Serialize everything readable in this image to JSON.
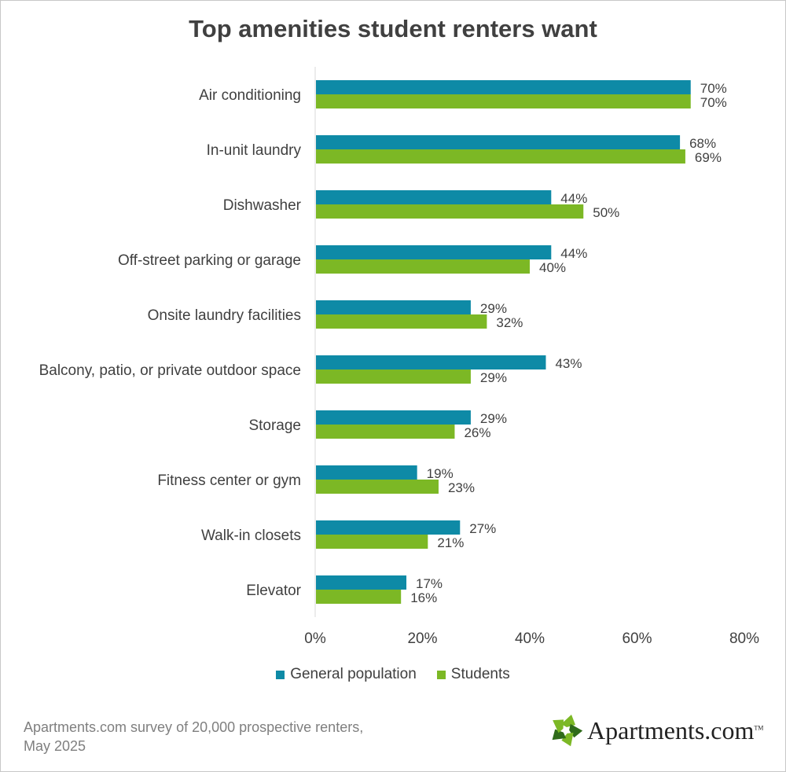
{
  "chart_data": {
    "type": "bar",
    "orientation": "horizontal",
    "title": "Top amenities student renters want",
    "categories": [
      "Air conditioning",
      "In-unit laundry",
      "Dishwasher",
      "Off-street parking or garage",
      "Onsite laundry facilities",
      "Balcony, patio, or private outdoor space",
      "Storage",
      "Fitness center or gym",
      "Walk-in closets",
      "Elevator"
    ],
    "series": [
      {
        "name": "General population",
        "color": "#0e8aa6",
        "values": [
          70,
          68,
          44,
          44,
          29,
          43,
          29,
          19,
          27,
          17
        ],
        "labels": [
          "70%",
          "68%",
          "44%",
          "44%",
          "29%",
          "43%",
          "29%",
          "19%",
          "27%",
          "17%"
        ]
      },
      {
        "name": "Students",
        "color": "#7cb825",
        "values": [
          70,
          69,
          50,
          40,
          32,
          29,
          26,
          23,
          21,
          16
        ],
        "labels": [
          "70%",
          "69%",
          "50%",
          "40%",
          "32%",
          "29%",
          "26%",
          "23%",
          "21%",
          "16%"
        ]
      }
    ],
    "xlim": [
      0,
      80
    ],
    "xticks": [
      "0%",
      "20%",
      "40%",
      "60%",
      "80%"
    ],
    "xtick_values": [
      0,
      20,
      40,
      60,
      80
    ],
    "grid": false,
    "legend_position": "bottom"
  },
  "source": {
    "line1": "Apartments.com survey of 20,000 prospective renters,",
    "line2": "May 2025"
  },
  "logo": {
    "text": "Apartments.com",
    "tm": "TM",
    "colors": [
      "#7cb825",
      "#2f6b1a"
    ]
  }
}
